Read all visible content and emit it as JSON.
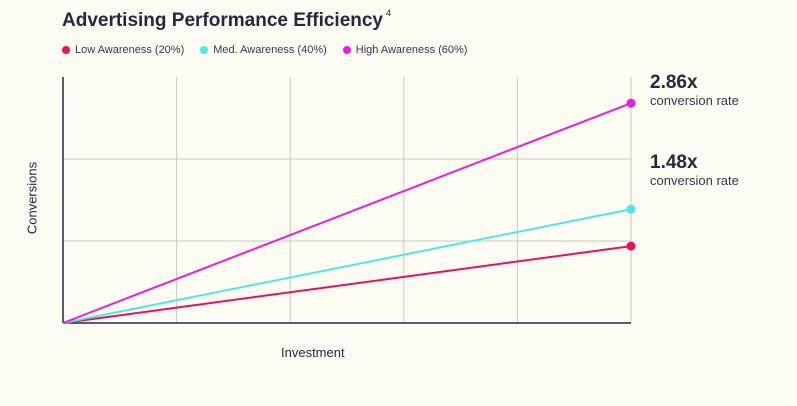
{
  "chart_data": {
    "type": "line",
    "title": "Advertising Performance Efficiency",
    "title_superscript": "4",
    "xlabel": "Investment",
    "ylabel": "Conversions",
    "grid": true,
    "legend_placement": "top-left",
    "x": [
      0,
      1
    ],
    "series": [
      {
        "name": "Low Awareness (20%)",
        "color": "#e8115b",
        "values": [
          0,
          1.0
        ]
      },
      {
        "name": "Med. Awareness (40%)",
        "color": "#4fe8e4",
        "values": [
          0,
          1.48
        ]
      },
      {
        "name": "High Awareness (60%)",
        "color": "#e81ee3",
        "values": [
          0,
          2.86
        ]
      }
    ],
    "ylim": [
      0,
      3.2
    ],
    "annotations": [
      {
        "value": "2.86x",
        "text": "conversion rate",
        "series": "High Awareness (60%)"
      },
      {
        "value": "1.48x",
        "text": "conversion rate",
        "series": "Med. Awareness (40%)"
      }
    ]
  }
}
